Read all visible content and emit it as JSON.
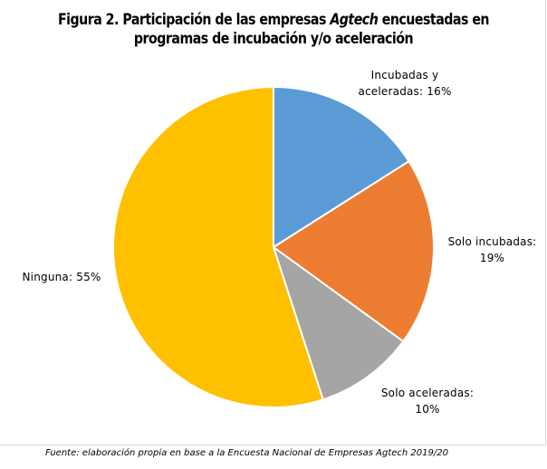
{
  "chart_data": {
    "type": "pie",
    "title_line1_pre": "Figura 2. Participación de las empresas ",
    "title_line1_em": "Agtech",
    "title_line1_post": " encuestadas en",
    "title_line2": "programas de incubación y/o aceleración",
    "slices": [
      {
        "label_line1": "Incubadas  y",
        "label_line2": "aceleradas: 16%",
        "value": 16,
        "color": "#5b9bd5"
      },
      {
        "label_line1": "Solo incubadas:",
        "label_line2": "19%",
        "value": 19,
        "color": "#ed7d31"
      },
      {
        "label_line1": "Solo aceleradas:",
        "label_line2": "10%",
        "value": 10,
        "color": "#a5a5a5"
      },
      {
        "label_line1": "Ninguna: 55%",
        "label_line2": "",
        "value": 55,
        "color": "#ffc000"
      }
    ]
  },
  "source": "Fuente: elaboración propia en base a la Encuesta Nacional de Empresas Agtech 2019/20"
}
